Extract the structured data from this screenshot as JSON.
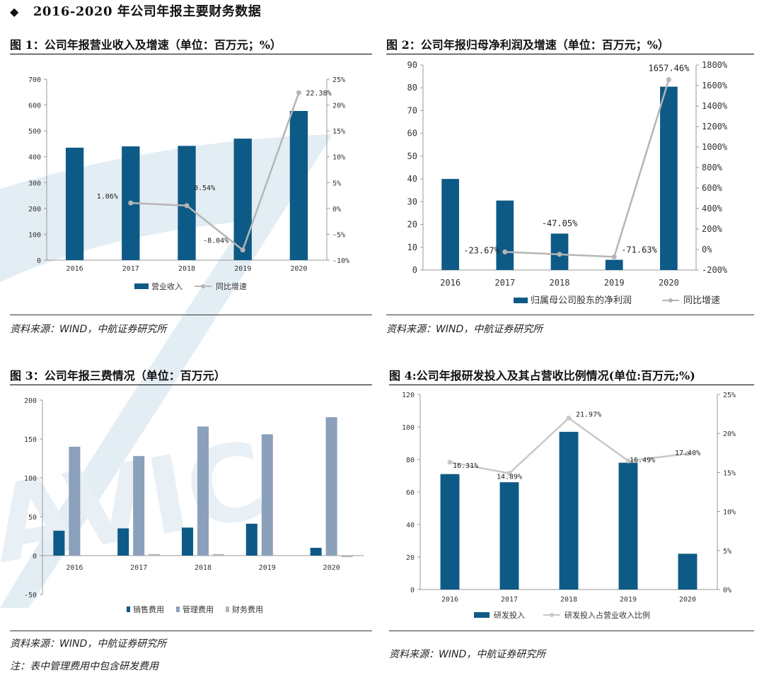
{
  "section": {
    "title": "2016-2020 年公司年报主要财务数据"
  },
  "figures": [
    {
      "title": "图 1：公司年报营业收入及增速（单位：百万元；%）",
      "source": "资料来源：WIND，中航证券研究所"
    },
    {
      "title": "图 2：公司年报归母净利润及增速（单位：百万元；%）",
      "source": "资料来源：WIND，中航证券研究所"
    },
    {
      "title": "图 3：公司年报三费情况（单位：百万元）",
      "source": "资料来源：WIND，中航证券研究所",
      "note": "注：表中管理费用中包含研发费用"
    },
    {
      "title": "图 4:公司年报研发投入及其占营收比例情况(单位:百万元;%)",
      "source": "资料来源：WIND，中航证券研究所"
    }
  ],
  "watermark_text": "AVIC",
  "colors": {
    "navy": "#0e5a86",
    "slate": "#8ba0bb",
    "gray": "#b5b5b5",
    "watermark": "#e3edf4"
  },
  "chart_data": [
    {
      "type": "bar",
      "categories": [
        "2016",
        "2017",
        "2018",
        "2019",
        "2020"
      ],
      "series": [
        {
          "name": "营业收入",
          "type": "bar",
          "axis": "left",
          "values": [
            435,
            440,
            442,
            470,
            577
          ]
        },
        {
          "name": "同比增速",
          "type": "line",
          "axis": "right",
          "values": [
            null,
            1.06,
            0.54,
            -8.04,
            22.38
          ]
        }
      ],
      "data_labels": [
        "",
        "1.06%",
        "0.54%",
        "-8.04%",
        "22.38%"
      ],
      "yticks_left": [
        "0",
        "100",
        "200",
        "300",
        "400",
        "500",
        "600",
        "700"
      ],
      "yticks_right": [
        "-10%",
        "-5%",
        "0%",
        "5%",
        "10%",
        "15%",
        "20%",
        "25%"
      ],
      "ylim_left": [
        0,
        700
      ],
      "ylim_right": [
        -10,
        25
      ],
      "legend": "bottom"
    },
    {
      "type": "bar",
      "categories": [
        "2016",
        "2017",
        "2018",
        "2019",
        "2020"
      ],
      "series": [
        {
          "name": "归属母公司股东的净利润",
          "type": "bar",
          "axis": "left",
          "values": [
            40,
            30.5,
            16,
            4.5,
            80.5
          ]
        },
        {
          "name": "同比增速",
          "type": "line",
          "axis": "right",
          "values": [
            null,
            -23.67,
            -47.05,
            -71.63,
            1657.46
          ]
        }
      ],
      "data_labels": [
        "",
        "-23.67%",
        "-47.05%",
        "-71.63%",
        "1657.46%"
      ],
      "yticks_left": [
        "0",
        "10",
        "20",
        "30",
        "40",
        "50",
        "60",
        "70",
        "80",
        "90"
      ],
      "yticks_right": [
        "-200%",
        "0%",
        "200%",
        "400%",
        "600%",
        "800%",
        "1000%",
        "1200%",
        "1400%",
        "1600%",
        "1800%"
      ],
      "ylim_left": [
        0,
        90
      ],
      "ylim_right": [
        -200,
        1800
      ],
      "legend": "bottom"
    },
    {
      "type": "bar",
      "categories": [
        "2016",
        "2017",
        "2018",
        "2019",
        "2020"
      ],
      "series": [
        {
          "name": "销售费用",
          "type": "bar",
          "values": [
            32,
            35,
            36,
            41,
            10
          ]
        },
        {
          "name": "管理费用",
          "type": "bar",
          "values": [
            140,
            128,
            166,
            156,
            178
          ]
        },
        {
          "name": "财务费用",
          "type": "bar",
          "values": [
            0,
            2,
            2,
            0,
            -2
          ]
        }
      ],
      "yticks_left": [
        "-50",
        "0",
        "50",
        "100",
        "150",
        "200"
      ],
      "ylim_left": [
        -50,
        200
      ],
      "legend": "bottom"
    },
    {
      "type": "bar",
      "categories": [
        "2016",
        "2017",
        "2018",
        "2019",
        "2020"
      ],
      "series": [
        {
          "name": "研发投入",
          "type": "bar",
          "axis": "left",
          "values": [
            71,
            66,
            97,
            78,
            22
          ]
        },
        {
          "name": "研发投入占营业收入比例",
          "type": "line",
          "axis": "right",
          "values": [
            16.31,
            14.89,
            21.97,
            16.49,
            17.4
          ]
        }
      ],
      "data_labels": [
        "16.31%",
        "14.89%",
        "21.97%",
        "16.49%",
        "17.40%"
      ],
      "yticks_left": [
        "0",
        "20",
        "40",
        "60",
        "80",
        "100",
        "120"
      ],
      "yticks_right": [
        "0%",
        "5%",
        "10%",
        "15%",
        "20%",
        "25%"
      ],
      "ylim_left": [
        0,
        120
      ],
      "ylim_right": [
        0,
        25
      ],
      "legend": "bottom"
    }
  ]
}
